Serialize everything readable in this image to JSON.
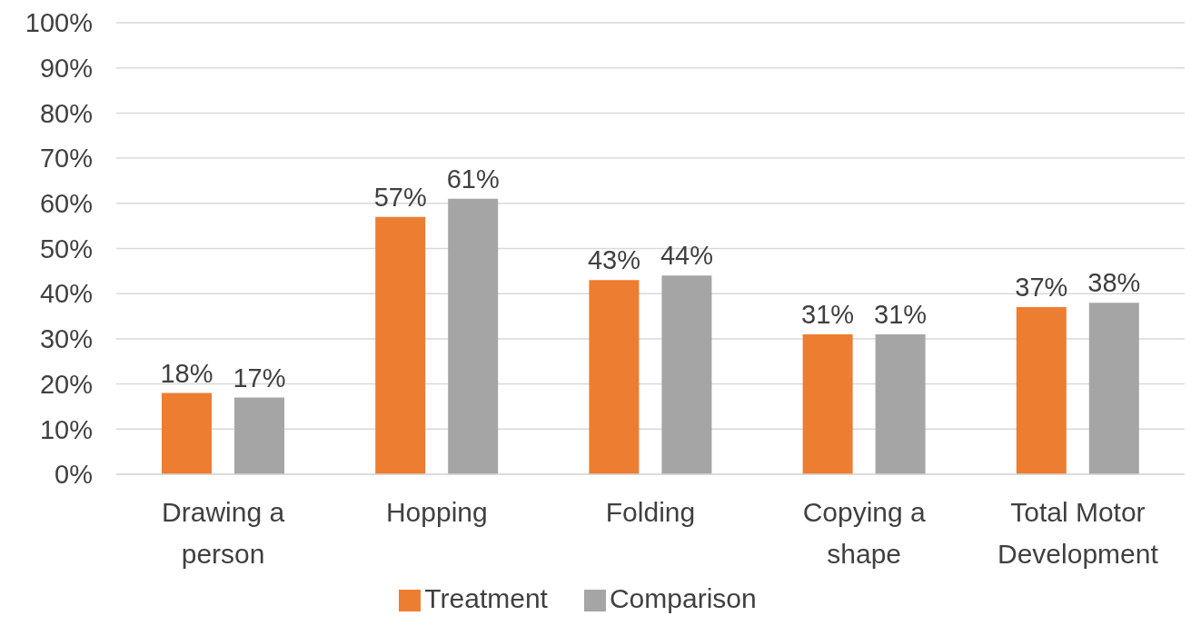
{
  "chart_data": {
    "type": "bar",
    "categories": [
      "Drawing a person",
      "Hopping",
      "Folding",
      "Copying a shape",
      "Total Motor Development"
    ],
    "series": [
      {
        "name": "Treatment",
        "color": "#ed7d31",
        "values": [
          18,
          57,
          43,
          31,
          37
        ],
        "value_labels": [
          "18%",
          "57%",
          "43%",
          "31%",
          "37%"
        ]
      },
      {
        "name": "Comparison",
        "color": "#a5a5a5",
        "values": [
          17,
          61,
          44,
          31,
          38
        ],
        "value_labels": [
          "17%",
          "61%",
          "44%",
          "31%",
          "38%"
        ]
      }
    ],
    "ylim": [
      0,
      100
    ],
    "yticks": [
      {
        "value": 0,
        "label": "0%"
      },
      {
        "value": 10,
        "label": "10%"
      },
      {
        "value": 20,
        "label": "20%"
      },
      {
        "value": 30,
        "label": "30%"
      },
      {
        "value": 40,
        "label": "40%"
      },
      {
        "value": 50,
        "label": "50%"
      },
      {
        "value": 60,
        "label": "60%"
      },
      {
        "value": 70,
        "label": "70%"
      },
      {
        "value": 80,
        "label": "80%"
      },
      {
        "value": 90,
        "label": "90%"
      },
      {
        "value": 100,
        "label": "100%"
      }
    ],
    "grid": "y",
    "legend": "bottom"
  }
}
